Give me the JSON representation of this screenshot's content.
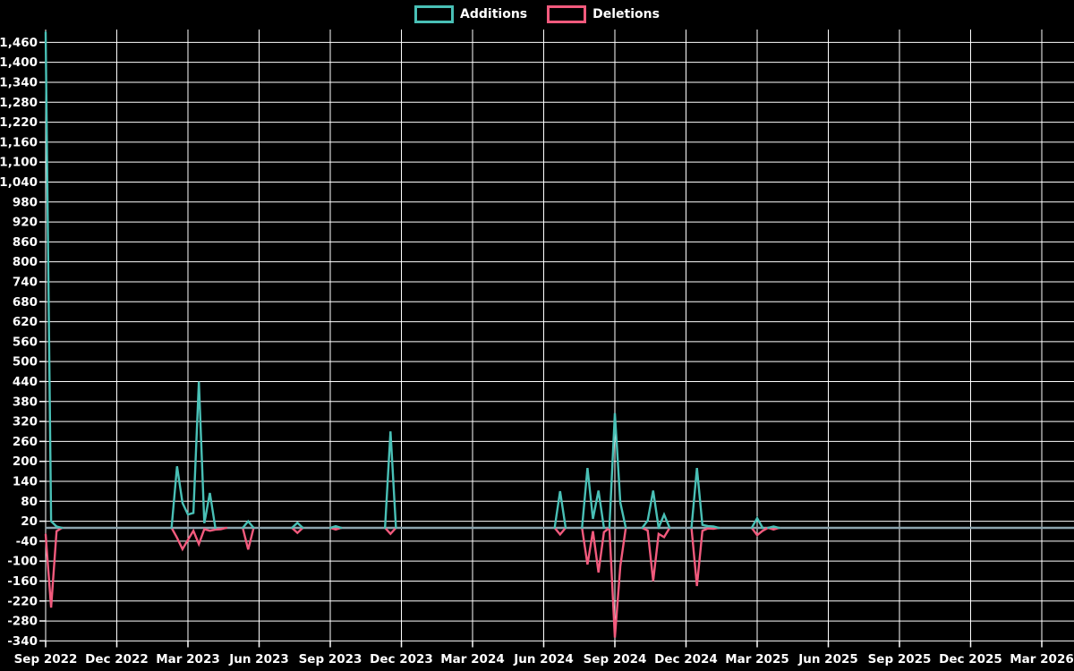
{
  "legend": {
    "additions_label": "Additions",
    "deletions_label": "Deletions"
  },
  "colors": {
    "background": "#000000",
    "grid": "#ffffff",
    "text": "#ffffff",
    "additions": "#49c0b6",
    "deletions": "#f25a7d",
    "zero_baseline": "#8ba3ad"
  },
  "chart_data": {
    "type": "line",
    "title": "",
    "legend_position": "top-center",
    "grid": "on",
    "x_unit": "week",
    "x_range": [
      "Sep 2022",
      "Mar 2026"
    ],
    "x_ticks": [
      "Sep 2022",
      "Dec 2022",
      "Mar 2023",
      "Jun 2023",
      "Sep 2023",
      "Dec 2023",
      "Mar 2024",
      "Jun 2024",
      "Sep 2024",
      "Dec 2024",
      "Mar 2025",
      "Jun 2025",
      "Sep 2025",
      "Dec 2025",
      "Mar 2026"
    ],
    "y_ticks": [
      "1,460",
      "1,400",
      "1,340",
      "1,280",
      "1,220",
      "1,160",
      "1,100",
      "1,040",
      "980",
      "920",
      "860",
      "800",
      "740",
      "680",
      "620",
      "560",
      "500",
      "440",
      "380",
      "320",
      "260",
      "200",
      "140",
      "80",
      "20",
      "-40",
      "-100",
      "-160",
      "-220",
      "-280",
      "-340"
    ],
    "y_axis": {
      "min": -340,
      "max": 1460,
      "step": 60
    },
    "weeks_total": 189,
    "series": [
      {
        "name": "Additions",
        "color": "#49c0b6"
      },
      {
        "name": "Deletions",
        "color": "#f25a7d"
      }
    ],
    "zero_elsewhere": true,
    "nonzero_points": [
      {
        "week": 0,
        "additions": 1490,
        "deletions": -20
      },
      {
        "week": 1,
        "additions": 20,
        "deletions": -240
      },
      {
        "week": 2,
        "additions": 4,
        "deletions": -10
      },
      {
        "week": 24,
        "additions": 185,
        "deletions": -30
      },
      {
        "week": 25,
        "additions": 75,
        "deletions": -64
      },
      {
        "week": 26,
        "additions": 40,
        "deletions": -36
      },
      {
        "week": 27,
        "additions": 45,
        "deletions": -9
      },
      {
        "week": 28,
        "additions": 440,
        "deletions": -49
      },
      {
        "week": 29,
        "additions": 14,
        "deletions": -4
      },
      {
        "week": 30,
        "additions": 105,
        "deletions": -9
      },
      {
        "week": 31,
        "additions": 0,
        "deletions": -5
      },
      {
        "week": 32,
        "additions": 0,
        "deletions": -4
      },
      {
        "week": 37,
        "additions": 20,
        "deletions": -65
      },
      {
        "week": 46,
        "additions": 15,
        "deletions": -15
      },
      {
        "week": 53,
        "additions": 5,
        "deletions": -5
      },
      {
        "week": 63,
        "additions": 290,
        "deletions": -18
      },
      {
        "week": 94,
        "additions": 110,
        "deletions": -20
      },
      {
        "week": 99,
        "additions": 180,
        "deletions": -110
      },
      {
        "week": 100,
        "additions": 27,
        "deletions": -10
      },
      {
        "week": 101,
        "additions": 112,
        "deletions": -134
      },
      {
        "week": 102,
        "additions": 0,
        "deletions": -13
      },
      {
        "week": 104,
        "additions": 345,
        "deletions": -330
      },
      {
        "week": 105,
        "additions": 76,
        "deletions": -115
      },
      {
        "week": 110,
        "additions": 22,
        "deletions": -8
      },
      {
        "week": 111,
        "additions": 112,
        "deletions": -160
      },
      {
        "week": 112,
        "additions": 0,
        "deletions": -18
      },
      {
        "week": 113,
        "additions": 40,
        "deletions": -28
      },
      {
        "week": 119,
        "additions": 180,
        "deletions": -175
      },
      {
        "week": 120,
        "additions": 9,
        "deletions": -9
      },
      {
        "week": 121,
        "additions": 5,
        "deletions": -2
      },
      {
        "week": 122,
        "additions": 4,
        "deletions": -3
      },
      {
        "week": 130,
        "additions": 29,
        "deletions": -22
      },
      {
        "week": 131,
        "additions": 0,
        "deletions": -9
      },
      {
        "week": 133,
        "additions": 4,
        "deletions": -5
      }
    ]
  }
}
